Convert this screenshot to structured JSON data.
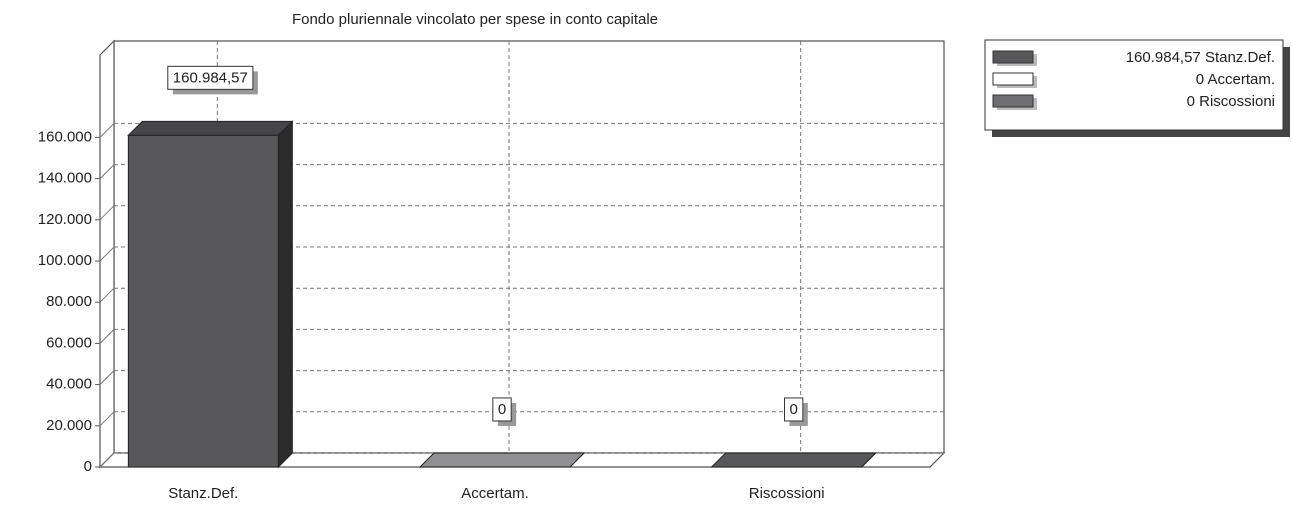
{
  "chart_data": {
    "type": "bar3d",
    "title": "Fondo pluriennale vincolato per spese in conto capitale",
    "categories": [
      "Stanz.Def.",
      "Accertam.",
      "Riscossioni"
    ],
    "values": [
      160984.57,
      0,
      0
    ],
    "value_labels": [
      "160.984,57",
      "0",
      "0"
    ],
    "colors": [
      "#58585a",
      "#b4b4b6",
      "#6e6e70"
    ],
    "ylim": [
      0,
      200000
    ],
    "yticks": [
      0,
      {
        "value": 20000,
        "label": "20.000"
      },
      {
        "value": 40000,
        "label": "40.000"
      },
      {
        "value": 60000,
        "label": "60.000"
      },
      {
        "value": 80000,
        "label": "80.000"
      },
      {
        "value": 100000,
        "label": "100.000"
      },
      {
        "value": 120000,
        "label": "120.000"
      },
      {
        "value": 140000,
        "label": "140.000"
      },
      {
        "value": 160000,
        "label": "160.000"
      }
    ],
    "grid": true,
    "legend": "top-right"
  }
}
